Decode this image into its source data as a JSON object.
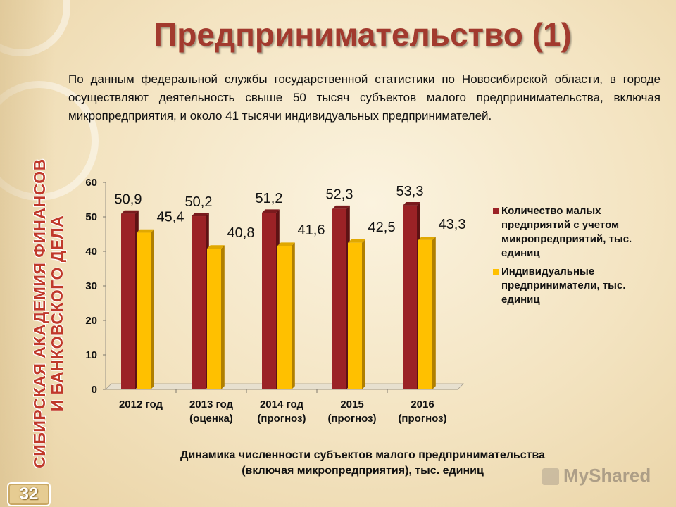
{
  "title": "Предпринимательство (1)",
  "paragraph": "По данным федеральной службы государственной статистики по Новосибирской области, в городе осуществляют деятельность свыше 50 тысяч субъектов малого предпринимательства, включая микропредприятия, и около 41 тысячи индивидуальных предпринимателей.",
  "sidebar": {
    "org_line1": "СИБИРСКАЯ АКАДЕМИЯ ФИНАНСОВ",
    "org_line2": "И БАНКОВСКОГО ДЕЛА",
    "page_number": "32"
  },
  "caption": {
    "line1": "Динамика численности субъектов малого предпринимательства",
    "line2": "(включая микропредприятия), тыс. единиц"
  },
  "watermark": "MyShared",
  "chart_data": {
    "type": "bar",
    "categories": [
      [
        "2012 год"
      ],
      [
        "2013 год",
        "(оценка)"
      ],
      [
        "2014 год",
        "(прогноз)"
      ],
      [
        "2015",
        "(прогноз)"
      ],
      [
        "2016",
        "(прогноз)"
      ]
    ],
    "series": [
      {
        "name": "Количество малых предприятий с учетом микропредприятий, тыс. единиц",
        "legend_lines": [
          "Количество малых",
          "предприятий с учетом",
          "микропредприятий, тыс.",
          "единиц"
        ],
        "values": [
          50.9,
          50.2,
          51.2,
          52.3,
          53.3
        ],
        "labels": [
          "50,9",
          "50,2",
          "51,2",
          "52,3",
          "53,3"
        ],
        "color": "#9b2226",
        "top_color": "#7a1a1d",
        "side_color": "#5e1214"
      },
      {
        "name": "Индивидуальные предприниматели, тыс. единиц",
        "legend_lines": [
          "Индивидуальные",
          "предприниматели, тыс.",
          "единиц"
        ],
        "values": [
          45.4,
          40.8,
          41.6,
          42.5,
          43.3
        ],
        "labels": [
          "45,4",
          "40,8",
          "41,6",
          "42,5",
          "43,3"
        ],
        "color": "#ffc000",
        "top_color": "#e0a800",
        "side_color": "#b07f00"
      }
    ],
    "yticks": [
      "0",
      "10",
      "20",
      "30",
      "40",
      "50",
      "60"
    ],
    "ylim": [
      0,
      60
    ],
    "grid": false,
    "legend_position": "right"
  }
}
